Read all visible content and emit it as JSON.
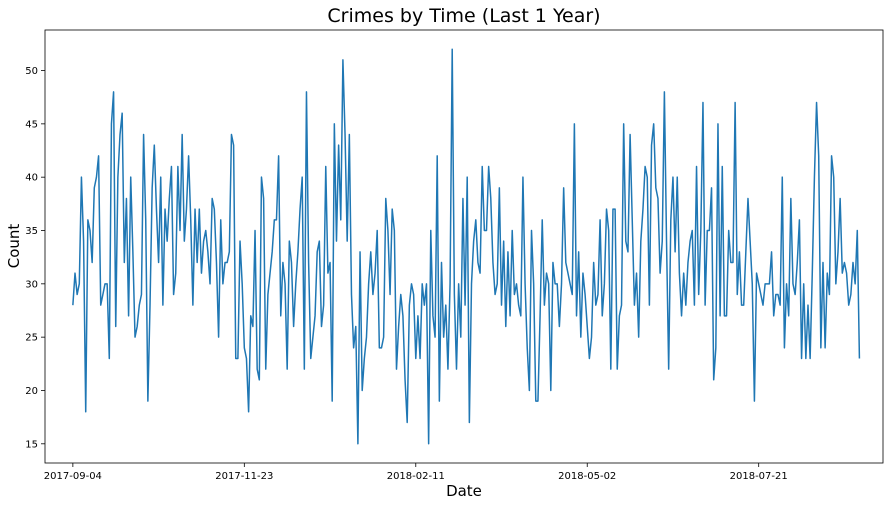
{
  "chart_data": {
    "type": "line",
    "title": "Crimes by Time (Last 1 Year)",
    "xlabel": "Date",
    "ylabel": "Count",
    "x_start": "2017-09-04",
    "x_end": "2018-09-04",
    "xlim": [
      "2017-08-22",
      "2018-09-17"
    ],
    "ylim": [
      13.2,
      53.8
    ],
    "x_ticks": [
      "2017-09-04",
      "2017-11-23",
      "2018-02-11",
      "2018-05-02",
      "2018-07-21"
    ],
    "y_ticks": [
      15,
      20,
      25,
      30,
      35,
      40,
      45,
      50
    ],
    "grid": false,
    "line_color": "#1f77b4",
    "values": [
      28,
      31,
      29,
      30,
      40,
      34,
      18,
      36,
      35,
      32,
      39,
      40,
      42,
      28,
      29,
      30,
      30,
      23,
      45,
      48,
      26,
      40,
      44,
      46,
      32,
      38,
      27,
      40,
      33,
      25,
      26,
      28,
      29,
      44,
      36,
      19,
      28,
      39,
      43,
      37,
      32,
      40,
      28,
      37,
      34,
      38,
      41,
      29,
      31,
      41,
      35,
      44,
      34,
      37,
      42,
      36,
      28,
      37,
      32,
      37,
      31,
      34,
      35,
      33,
      30,
      38,
      37,
      32,
      25,
      36,
      30,
      32,
      32,
      33,
      44,
      43,
      23,
      23,
      34,
      30,
      24,
      23,
      18,
      27,
      26,
      35,
      22,
      21,
      40,
      38,
      22,
      29,
      31,
      33,
      36,
      36,
      42,
      27,
      32,
      30,
      22,
      34,
      32,
      26,
      30,
      33,
      37,
      40,
      22,
      48,
      32,
      23,
      25,
      27,
      33,
      34,
      26,
      28,
      41,
      31,
      32,
      19,
      45,
      34,
      43,
      36,
      51,
      44,
      34,
      44,
      29,
      24,
      26,
      15,
      33,
      20,
      23,
      25,
      30,
      33,
      29,
      31,
      35,
      24,
      24,
      25,
      38,
      35,
      29,
      37,
      35,
      22,
      26,
      29,
      27,
      21,
      17,
      28,
      30,
      29,
      23,
      27,
      23,
      30,
      28,
      30,
      15,
      35,
      27,
      25,
      42,
      19,
      32,
      25,
      28,
      22,
      30,
      52,
      29,
      22,
      30,
      25,
      38,
      28,
      40,
      17,
      30,
      34,
      36,
      32,
      31,
      41,
      35,
      35,
      41,
      38,
      32,
      29,
      30,
      39,
      28,
      34,
      26,
      33,
      27,
      35,
      29,
      30,
      28,
      27,
      40,
      30,
      24,
      20,
      35,
      30,
      19,
      19,
      27,
      36,
      28,
      31,
      30,
      20,
      32,
      30,
      30,
      26,
      30,
      39,
      32,
      31,
      30,
      29,
      45,
      27,
      33,
      25,
      31,
      29,
      26,
      23,
      25,
      32,
      28,
      29,
      36,
      27,
      30,
      37,
      35,
      22,
      37,
      37,
      22,
      27,
      28,
      45,
      34,
      33,
      44,
      36,
      28,
      31,
      25,
      34,
      37,
      41,
      40,
      28,
      43,
      45,
      39,
      38,
      31,
      34,
      48,
      34,
      22,
      36,
      40,
      33,
      40,
      31,
      27,
      31,
      28,
      32,
      34,
      35,
      28,
      41,
      29,
      35,
      47,
      28,
      35,
      35,
      39,
      21,
      24,
      45,
      27,
      41,
      27,
      27,
      35,
      32,
      32,
      47,
      29,
      33,
      28,
      28,
      33,
      38,
      34,
      30,
      19,
      31,
      30,
      29,
      28,
      30,
      30,
      30,
      33,
      27,
      29,
      29,
      28,
      40,
      24,
      30,
      27,
      38,
      30,
      29,
      32,
      36,
      23,
      30,
      23,
      28,
      23,
      31,
      40,
      47,
      42,
      24,
      32,
      24,
      31,
      29,
      42,
      40,
      30,
      33,
      38,
      31,
      32,
      31,
      28,
      29,
      32,
      30,
      35,
      23
    ]
  }
}
